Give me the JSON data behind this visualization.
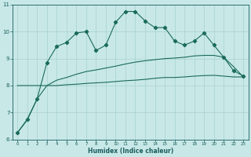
{
  "title": "",
  "xlabel": "Humidex (Indice chaleur)",
  "ylabel": "",
  "bg_color": "#c8e8e8",
  "line_color": "#1a6b5a",
  "xlim": [
    -0.5,
    23.5
  ],
  "ylim": [
    6,
    11
  ],
  "yticks": [
    6,
    7,
    8,
    9,
    10,
    11
  ],
  "xticks": [
    0,
    1,
    2,
    3,
    4,
    5,
    6,
    7,
    8,
    9,
    10,
    11,
    12,
    13,
    14,
    15,
    16,
    17,
    18,
    19,
    20,
    21,
    22,
    23
  ],
  "curve1_x": [
    0,
    1,
    2,
    3,
    4,
    5,
    6,
    7,
    8,
    9,
    10,
    11,
    12,
    13,
    14,
    15,
    16,
    17,
    18,
    19,
    20,
    21,
    22,
    23
  ],
  "curve1_y": [
    6.25,
    6.75,
    7.5,
    8.85,
    9.45,
    9.6,
    9.95,
    10.0,
    9.3,
    9.5,
    10.35,
    10.75,
    10.75,
    10.4,
    10.15,
    10.15,
    9.65,
    9.5,
    9.65,
    9.95,
    9.5,
    9.05,
    8.55,
    8.35
  ],
  "curve2_x": [
    0,
    1,
    2,
    3,
    4,
    5,
    6,
    7,
    8,
    9,
    10,
    11,
    12,
    13,
    14,
    15,
    16,
    17,
    18,
    19,
    20,
    21,
    22,
    23
  ],
  "curve2_y": [
    8.0,
    8.0,
    8.0,
    8.0,
    8.0,
    8.03,
    8.05,
    8.08,
    8.1,
    8.12,
    8.15,
    8.18,
    8.2,
    8.23,
    8.27,
    8.3,
    8.3,
    8.32,
    8.35,
    8.37,
    8.38,
    8.35,
    8.32,
    8.32
  ],
  "curve3_x": [
    0,
    1,
    2,
    3,
    4,
    5,
    6,
    7,
    8,
    9,
    10,
    11,
    12,
    13,
    14,
    15,
    16,
    17,
    18,
    19,
    20,
    21,
    22,
    23
  ],
  "curve3_y": [
    6.25,
    6.72,
    7.5,
    8.0,
    8.2,
    8.3,
    8.42,
    8.52,
    8.58,
    8.65,
    8.72,
    8.8,
    8.87,
    8.92,
    8.96,
    9.0,
    9.02,
    9.05,
    9.1,
    9.12,
    9.12,
    9.05,
    8.7,
    8.32
  ],
  "grid_color": "#a8d0d0",
  "font_color": "#1a5c5c",
  "marker": "D"
}
